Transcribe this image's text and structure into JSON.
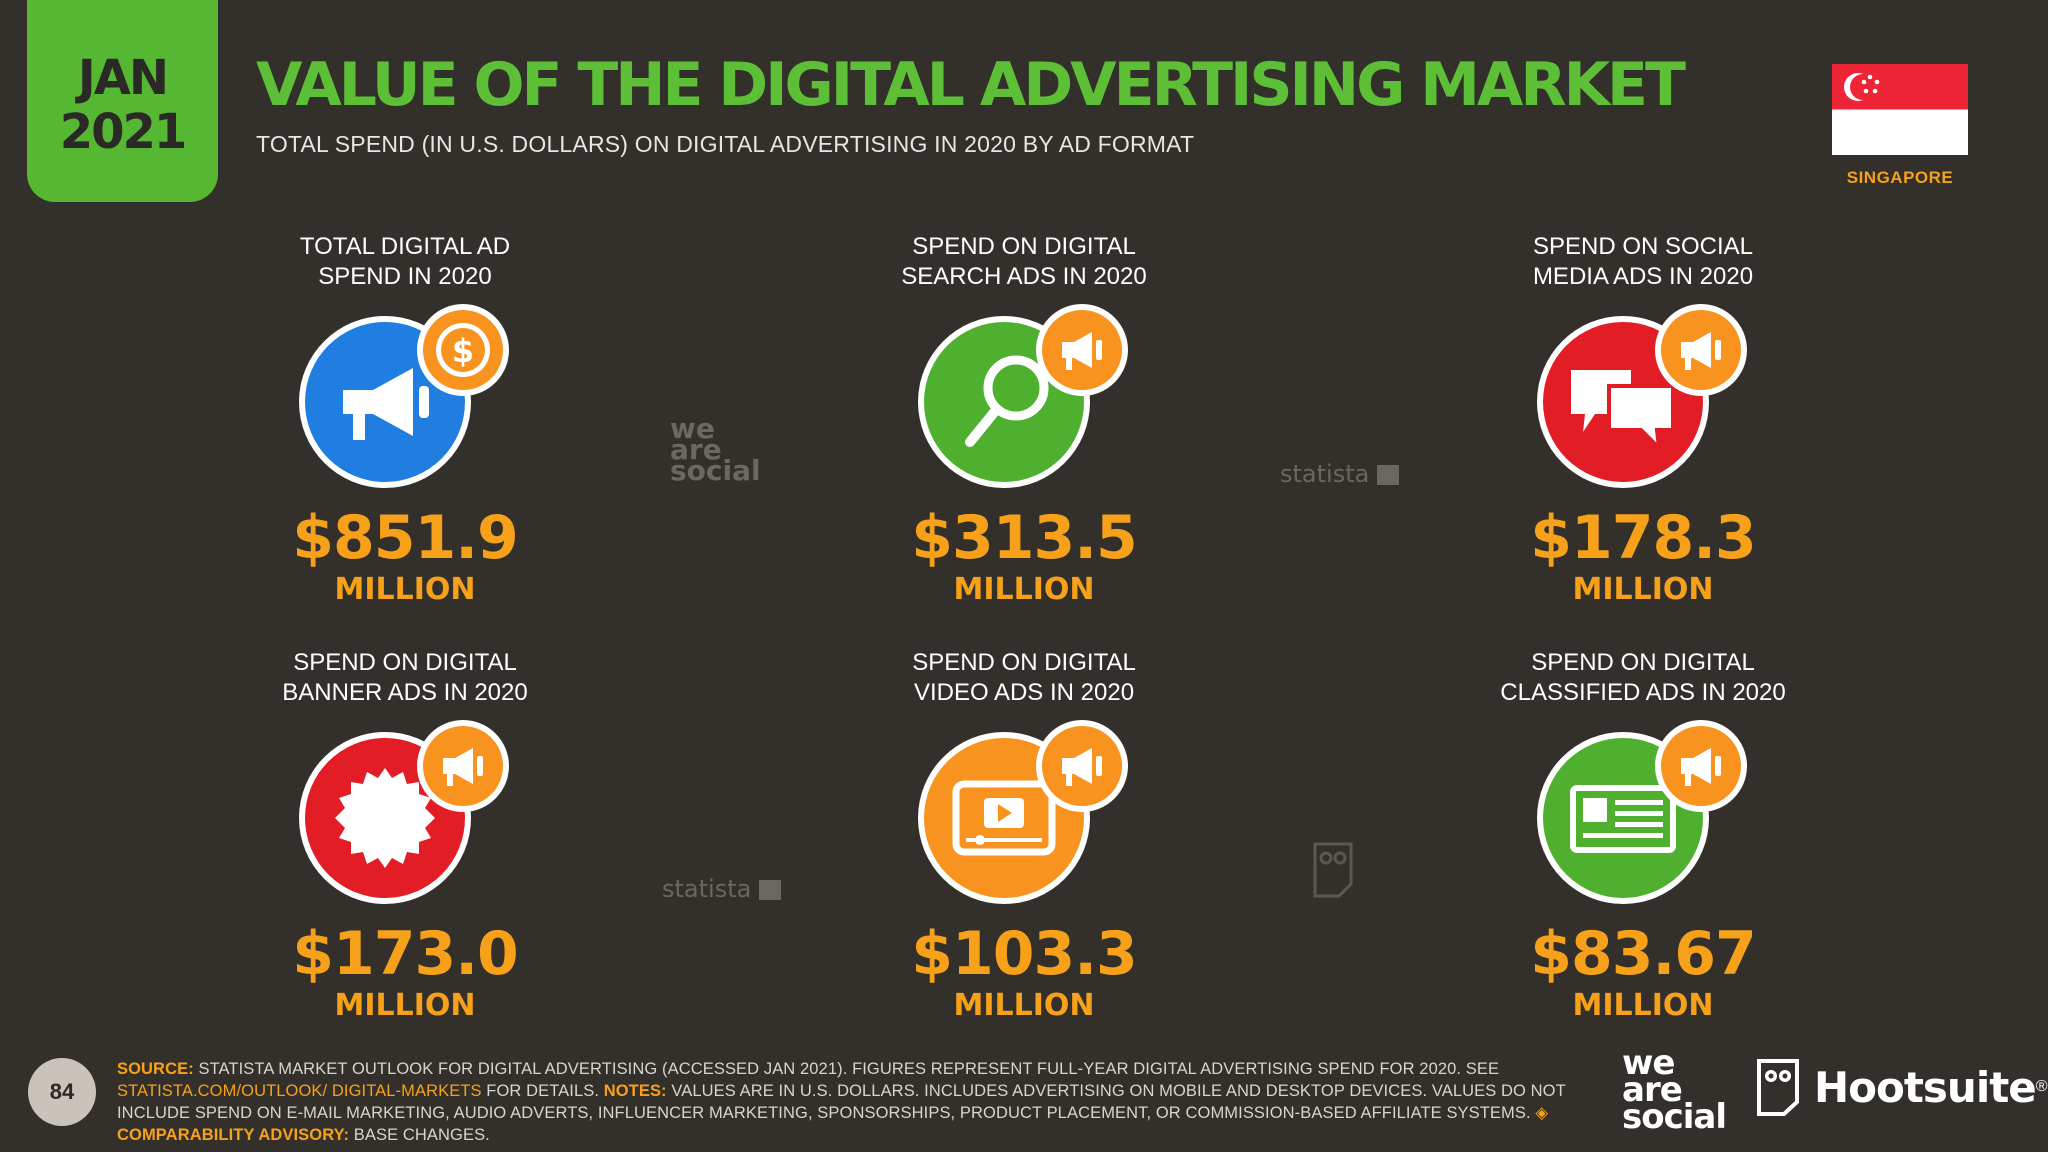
{
  "header": {
    "date_month": "JAN",
    "date_year": "2021",
    "title": "VALUE OF THE DIGITAL ADVERTISING MARKET",
    "subtitle": "TOTAL SPEND (IN U.S. DOLLARS) ON DIGITAL ADVERTISING IN 2020 BY AD FORMAT",
    "country": "SINGAPORE"
  },
  "stats": [
    {
      "line1": "TOTAL DIGITAL AD",
      "line2": "SPEND IN 2020",
      "value": "$851.9",
      "unit": "MILLION",
      "color": "#1f7ee0",
      "icon": "megaphone-dollar-icon"
    },
    {
      "line1": "SPEND ON DIGITAL",
      "line2": "SEARCH ADS IN 2020",
      "value": "$313.5",
      "unit": "MILLION",
      "color": "#4fb02f",
      "icon": "magnifier-icon"
    },
    {
      "line1": "SPEND ON SOCIAL",
      "line2": "MEDIA ADS IN 2020",
      "value": "$178.3",
      "unit": "MILLION",
      "color": "#e21d25",
      "icon": "chat-bubbles-icon"
    },
    {
      "line1": "SPEND ON DIGITAL",
      "line2": "BANNER ADS IN 2020",
      "value": "$173.0",
      "unit": "MILLION",
      "color": "#e21d25",
      "icon": "starburst-banner-icon"
    },
    {
      "line1": "SPEND ON DIGITAL",
      "line2": "VIDEO ADS IN 2020",
      "value": "$103.3",
      "unit": "MILLION",
      "color": "#f7931e",
      "icon": "video-player-icon"
    },
    {
      "line1": "SPEND ON DIGITAL",
      "line2": "CLASSIFIED ADS IN 2020",
      "value": "$83.67",
      "unit": "MILLION",
      "color": "#4fb02f",
      "icon": "classified-ad-icon"
    }
  ],
  "watermarks": {
    "statista": "statista",
    "we": "we",
    "are": "are",
    "social": "social"
  },
  "footer": {
    "page_number": "84",
    "source_label": "SOURCE:",
    "source_text": "STATISTA MARKET OUTLOOK FOR DIGITAL ADVERTISING (ACCESSED JAN 2021). FIGURES REPRESENT FULL-YEAR DIGITAL ADVERTISING SPEND FOR 2020. SEE",
    "source_link": "STATISTA.COM/OUTLOOK/ DIGITAL-MARKETS",
    "source_tail": "FOR DETAILS.",
    "notes_label": "NOTES:",
    "notes_text": "VALUES ARE IN U.S. DOLLARS. INCLUDES ADVERTISING ON MOBILE AND DESKTOP DEVICES. VALUES DO NOT INCLUDE SPEND ON E-MAIL MARKETING, AUDIO ADVERTS, INFLUENCER MARKETING, SPONSORSHIPS, PRODUCT PLACEMENT, OR COMMISSION-BASED AFFILIATE SYSTEMS.",
    "advisory_label": "◈ COMPARABILITY ADVISORY:",
    "advisory_text": "BASE CHANGES.",
    "brand_we": "we",
    "brand_are": "are",
    "brand_social": "social",
    "brand_hootsuite": "Hootsuite",
    "registered": "®"
  },
  "colors": {
    "accent_green": "#5cbf36",
    "accent_orange": "#f7a11a",
    "background": "#33302c"
  }
}
